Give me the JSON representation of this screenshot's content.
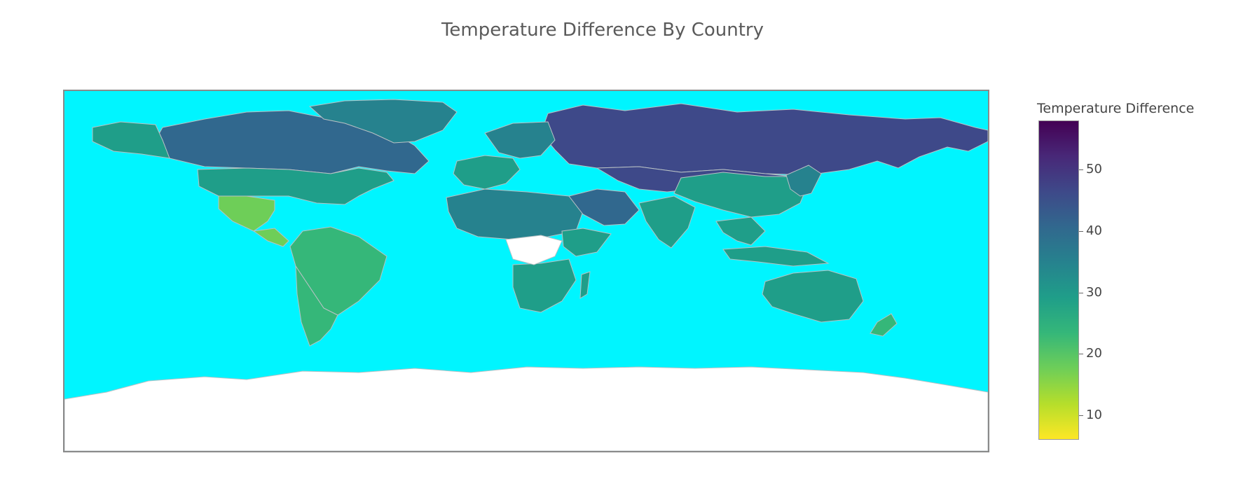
{
  "title": "Temperature Difference By Country",
  "colorbar": {
    "title": "Temperature Difference",
    "ticks": [
      "50",
      "40",
      "30",
      "20",
      "10"
    ],
    "min": 6,
    "max": 58,
    "tick_values": [
      50,
      40,
      30,
      20,
      10
    ]
  },
  "colors": {
    "ocean": "#00f5ff",
    "no_data": "#ffffff",
    "border": "#b9c2c5",
    "scale": [
      "#fde725",
      "#b5de2b",
      "#6ece58",
      "#35b779",
      "#1f9e89",
      "#26828e",
      "#31688e",
      "#3e4989",
      "#482878",
      "#440154"
    ]
  },
  "chart_data": {
    "type": "choropleth",
    "title": "Temperature Difference By Country",
    "colorbar_title": "Temperature Difference",
    "colorscale": "Viridis (reversed)",
    "range": [
      6,
      58
    ],
    "regions": [
      {
        "region": "Russia",
        "value": 46
      },
      {
        "region": "Kazakhstan / Mongolia",
        "value": 46
      },
      {
        "region": "Canada",
        "value": 42
      },
      {
        "region": "Greenland",
        "value": 36
      },
      {
        "region": "Alaska",
        "value": 30
      },
      {
        "region": "United States",
        "value": 29
      },
      {
        "region": "Mexico",
        "value": 18
      },
      {
        "region": "Central America",
        "value": 20
      },
      {
        "region": "South America",
        "value": 25
      },
      {
        "region": "Chile / Argentina",
        "value": 21
      },
      {
        "region": "Western Europe",
        "value": 30
      },
      {
        "region": "Northern Europe",
        "value": 36
      },
      {
        "region": "North Africa",
        "value": 37
      },
      {
        "region": "Horn of Africa",
        "value": 28
      },
      {
        "region": "Southern Africa",
        "value": 27
      },
      {
        "region": "Madagascar",
        "value": 28
      },
      {
        "region": "Middle East",
        "value": 39
      },
      {
        "region": "China",
        "value": 30
      },
      {
        "region": "India",
        "value": 31
      },
      {
        "region": "Southeast Asia",
        "value": 30
      },
      {
        "region": "Indonesia",
        "value": 29
      },
      {
        "region": "Japan / Korea",
        "value": 32
      },
      {
        "region": "Australia",
        "value": 30
      },
      {
        "region": "New Zealand",
        "value": 22
      },
      {
        "region": "Central Africa",
        "value": null
      },
      {
        "region": "Antarctica",
        "value": null
      }
    ]
  }
}
